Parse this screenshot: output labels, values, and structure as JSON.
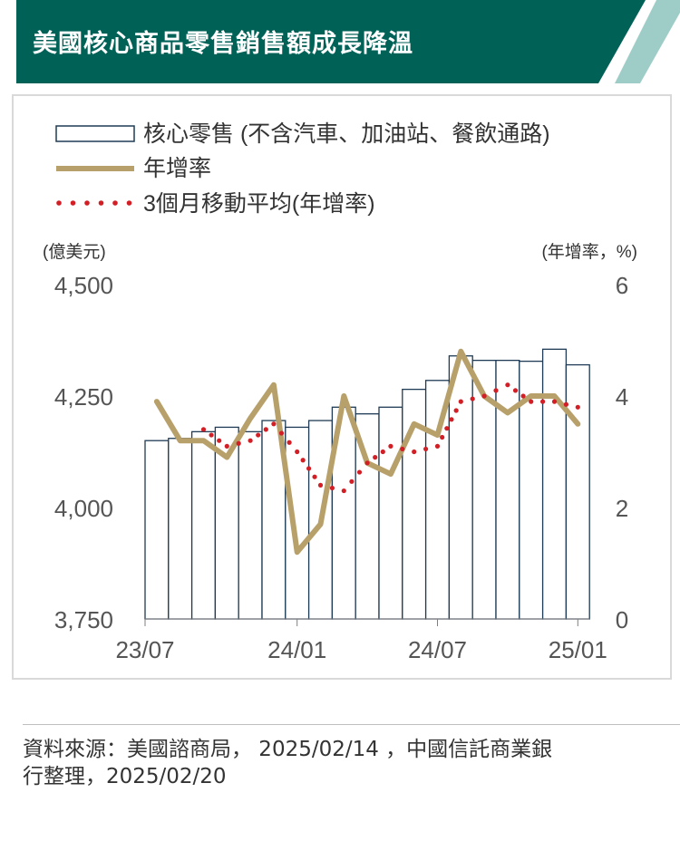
{
  "title": "美國核心商品零售銷售額成長降溫",
  "colors": {
    "banner": "#006157",
    "stripe": "#9ecdc8",
    "bar_edge": "#1f3b55",
    "line": "#b8a06a",
    "dots": "#d21f26"
  },
  "chart_data": {
    "type": "bar+line",
    "legend": [
      "核心零售 (不含汽車、加油站、餐飲通路)",
      "年增率",
      "3個月移動平均(年增率)"
    ],
    "left_unit": "(億美元)",
    "right_unit": "(年增率，%)",
    "left_axis": {
      "min": 3750,
      "max": 4500,
      "ticks": [
        "4,500",
        "4,250",
        "4,000",
        "3,750"
      ]
    },
    "right_axis": {
      "min": 0,
      "max": 6,
      "ticks": [
        "6",
        "4",
        "2",
        "0"
      ]
    },
    "x_ticks": [
      "23/07",
      "24/01",
      "24/07",
      "25/01"
    ],
    "x_tick_index": [
      0,
      6,
      12,
      18
    ],
    "months": [
      "23/07",
      "23/08",
      "23/09",
      "23/10",
      "23/11",
      "23/12",
      "24/01",
      "24/02",
      "24/03",
      "24/04",
      "24/05",
      "24/06",
      "24/07",
      "24/08",
      "24/09",
      "24/10",
      "24/11",
      "24/12",
      "25/01"
    ],
    "series": [
      {
        "name": "核心零售 (不含汽車、加油站、餐飲通路)",
        "type": "bar",
        "axis": "left",
        "values": [
          4150,
          4155,
          4170,
          4180,
          4170,
          4195,
          4180,
          4195,
          4225,
          4210,
          4225,
          4265,
          4285,
          4340,
          4330,
          4330,
          4328,
          4355,
          4320
        ]
      },
      {
        "name": "年增率",
        "type": "line",
        "axis": "right",
        "values": [
          3.9,
          3.2,
          3.2,
          2.9,
          3.6,
          4.2,
          1.2,
          1.7,
          4.0,
          2.8,
          2.6,
          3.5,
          3.3,
          4.8,
          4.0,
          3.7,
          4.0,
          4.0,
          3.5
        ]
      },
      {
        "name": "3個月移動平均(年增率)",
        "type": "dotted-line",
        "axis": "right",
        "values": [
          null,
          null,
          3.4,
          3.1,
          3.2,
          3.5,
          3.0,
          2.4,
          2.3,
          2.8,
          3.1,
          3.0,
          3.1,
          3.9,
          4.0,
          4.2,
          3.9,
          3.9,
          3.8
        ]
      }
    ]
  },
  "source": {
    "line1": "資料來源：美國諮商局， 2025/02/14 ，中國信託商業銀",
    "line2": "行整理，2025/02/20"
  }
}
